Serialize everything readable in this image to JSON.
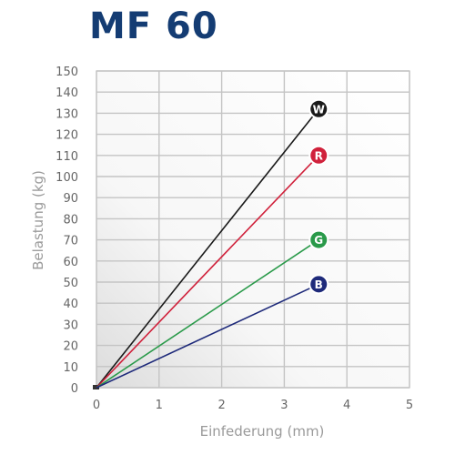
{
  "chart_data": {
    "type": "line",
    "title": "MF 60",
    "xlabel": "Einfederung (mm)",
    "ylabel": "Belastung (kg)",
    "xlim": [
      0,
      5
    ],
    "ylim": [
      0,
      150
    ],
    "x_ticks": [
      "0",
      "1",
      "2",
      "3",
      "4",
      "5"
    ],
    "y_ticks": [
      "0",
      "10",
      "20",
      "30",
      "40",
      "50",
      "60",
      "70",
      "80",
      "90",
      "100",
      "110",
      "120",
      "130",
      "140",
      "150"
    ],
    "grid": true,
    "series": [
      {
        "name": "W",
        "color": "#1a1a1a",
        "marker_color": "#1a1a1a",
        "points": [
          [
            0,
            0
          ],
          [
            3.55,
            132
          ]
        ]
      },
      {
        "name": "R",
        "color": "#d0213b",
        "marker_color": "#d0213b",
        "points": [
          [
            0,
            0
          ],
          [
            3.55,
            110
          ]
        ]
      },
      {
        "name": "G",
        "color": "#2a9a4a",
        "marker_color": "#2a9a4a",
        "points": [
          [
            0,
            0
          ],
          [
            3.55,
            70
          ]
        ]
      },
      {
        "name": "B",
        "color": "#1e2a7a",
        "marker_color": "#1e2a7a",
        "points": [
          [
            0,
            0
          ],
          [
            3.55,
            49
          ]
        ]
      }
    ]
  }
}
